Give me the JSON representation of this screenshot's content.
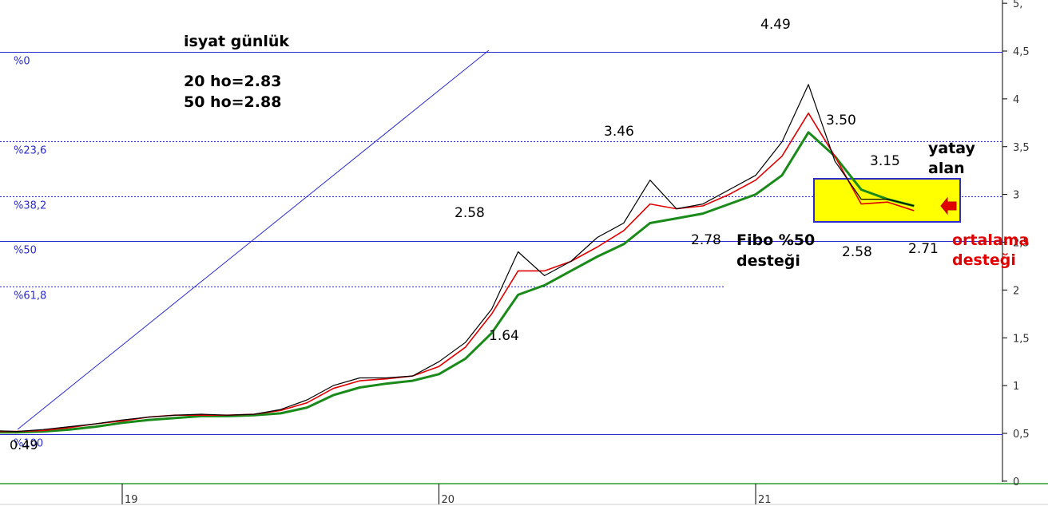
{
  "chart_data": {
    "type": "line",
    "title": "isyat günlük",
    "subtitle_lines": [
      "20 ho=2.83",
      "50 ho=2.88"
    ],
    "xlabel": "",
    "ylabel": "",
    "x_ticks": [
      "19",
      "20",
      "21"
    ],
    "y_ticks": [
      "0",
      "0,5",
      "1",
      "1,5",
      "2",
      "2,5",
      "3",
      "3,5",
      "4",
      "4,5",
      "5,"
    ],
    "ylim": [
      0,
      5
    ],
    "grid": false,
    "colors": {
      "price": "#000000",
      "ma20": "#e00000",
      "ma50": "#1a8a1a",
      "fib_line": "#2a2ad0",
      "fib_label": "#2a2ad0",
      "box_fill": "#ffff00",
      "box_border": "#2a2ad0",
      "arrow": "#e00000",
      "red_text": "#e00000"
    },
    "fibonacci": {
      "levels": [
        {
          "label": "%0",
          "value": 4.49,
          "style": "solid"
        },
        {
          "label": "%23,6",
          "value": 3.56,
          "style": "dashed"
        },
        {
          "label": "%38,2",
          "value": 2.98,
          "style": "dashed"
        },
        {
          "label": "%50",
          "value": 2.51,
          "style": "solid"
        },
        {
          "label": "%61,8",
          "value": 2.04,
          "style": "dashed"
        },
        {
          "label": "%100",
          "value": 0.49,
          "style": "solid"
        }
      ]
    },
    "series": [
      {
        "key": "price",
        "x": [
          "18-08",
          "18-09",
          "18-10",
          "18-11",
          "18-12",
          "19-01",
          "19-02",
          "19-03",
          "19-04",
          "19-05",
          "19-06",
          "19-07",
          "19-08",
          "19-09",
          "19-10",
          "19-11",
          "19-12",
          "20-01",
          "20-02",
          "20-03",
          "20-04",
          "20-05",
          "20-06",
          "20-07",
          "20-08",
          "20-09",
          "20-10",
          "20-11",
          "20-12",
          "21-01",
          "21-02",
          "21-03",
          "21-04",
          "21-05",
          "21-06",
          "21-07"
        ],
        "values": [
          0.53,
          0.52,
          0.54,
          0.57,
          0.6,
          0.64,
          0.67,
          0.69,
          0.7,
          0.69,
          0.7,
          0.75,
          0.85,
          1.0,
          1.08,
          1.08,
          1.1,
          1.25,
          1.45,
          1.8,
          2.4,
          2.15,
          2.3,
          2.55,
          2.7,
          3.15,
          2.85,
          2.9,
          3.05,
          3.2,
          3.55,
          4.15,
          3.35,
          2.95,
          2.95,
          2.88
        ]
      },
      {
        "key": "ma20",
        "x": [
          "18-08",
          "18-09",
          "18-10",
          "18-11",
          "18-12",
          "19-01",
          "19-02",
          "19-03",
          "19-04",
          "19-05",
          "19-06",
          "19-07",
          "19-08",
          "19-09",
          "19-10",
          "19-11",
          "19-12",
          "20-01",
          "20-02",
          "20-03",
          "20-04",
          "20-05",
          "20-06",
          "20-07",
          "20-08",
          "20-09",
          "20-10",
          "20-11",
          "20-12",
          "21-01",
          "21-02",
          "21-03",
          "21-04",
          "21-05",
          "21-06",
          "21-07"
        ],
        "values": [
          0.52,
          0.52,
          0.53,
          0.56,
          0.6,
          0.63,
          0.67,
          0.69,
          0.69,
          0.69,
          0.7,
          0.74,
          0.82,
          0.97,
          1.05,
          1.07,
          1.1,
          1.2,
          1.4,
          1.75,
          2.2,
          2.2,
          2.3,
          2.45,
          2.62,
          2.9,
          2.85,
          2.88,
          3.0,
          3.15,
          3.4,
          3.85,
          3.4,
          2.9,
          2.92,
          2.83
        ]
      },
      {
        "key": "ma50",
        "x": [
          "18-08",
          "18-09",
          "18-10",
          "18-11",
          "18-12",
          "19-01",
          "19-02",
          "19-03",
          "19-04",
          "19-05",
          "19-06",
          "19-07",
          "19-08",
          "19-09",
          "19-10",
          "19-11",
          "19-12",
          "20-01",
          "20-02",
          "20-03",
          "20-04",
          "20-05",
          "20-06",
          "20-07",
          "20-08",
          "20-09",
          "20-10",
          "20-11",
          "20-12",
          "21-01",
          "21-02",
          "21-03",
          "21-04",
          "21-05",
          "21-06",
          "21-07"
        ],
        "values": [
          0.51,
          0.51,
          0.52,
          0.54,
          0.57,
          0.61,
          0.64,
          0.66,
          0.68,
          0.68,
          0.69,
          0.71,
          0.77,
          0.9,
          0.98,
          1.02,
          1.05,
          1.12,
          1.28,
          1.55,
          1.95,
          2.05,
          2.2,
          2.35,
          2.48,
          2.7,
          2.75,
          2.8,
          2.9,
          3.0,
          3.2,
          3.65,
          3.4,
          3.05,
          2.95,
          2.88
        ]
      }
    ],
    "annotations": [
      {
        "key": "a049",
        "text": "0.49"
      },
      {
        "key": "a258a",
        "text": "2.58"
      },
      {
        "key": "a164",
        "text": "1.64"
      },
      {
        "key": "a346",
        "text": "3.46"
      },
      {
        "key": "a278",
        "text": "2.78"
      },
      {
        "key": "a449",
        "text": "4.49"
      },
      {
        "key": "a350",
        "text": "3.50"
      },
      {
        "key": "a315",
        "text": "3.15"
      },
      {
        "key": "a258b",
        "text": "2.58"
      },
      {
        "key": "a271",
        "text": "2.71"
      }
    ],
    "notes": {
      "fibo_line1": "Fibo %50",
      "fibo_line2": "desteği",
      "yatay_line1": "yatay",
      "yatay_line2": "alan",
      "ort_line1": "ortalama",
      "ort_line2": "desteği"
    }
  }
}
